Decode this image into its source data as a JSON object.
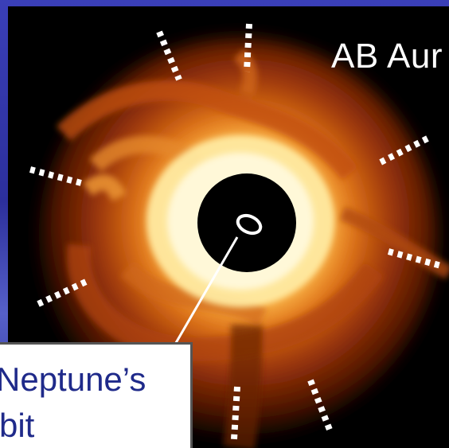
{
  "image": {
    "title": "AB Aur",
    "callout": {
      "line1": "Neptune’s",
      "line2": "rbit"
    }
  },
  "colors": {
    "background_blue": "#2c2f9c",
    "disk_inner": "#fff6c8",
    "disk_mid": "#f6a030",
    "disk_outer": "#8a2c08",
    "callout_text": "#1f2a8a",
    "ticks": "#ffffff"
  }
}
